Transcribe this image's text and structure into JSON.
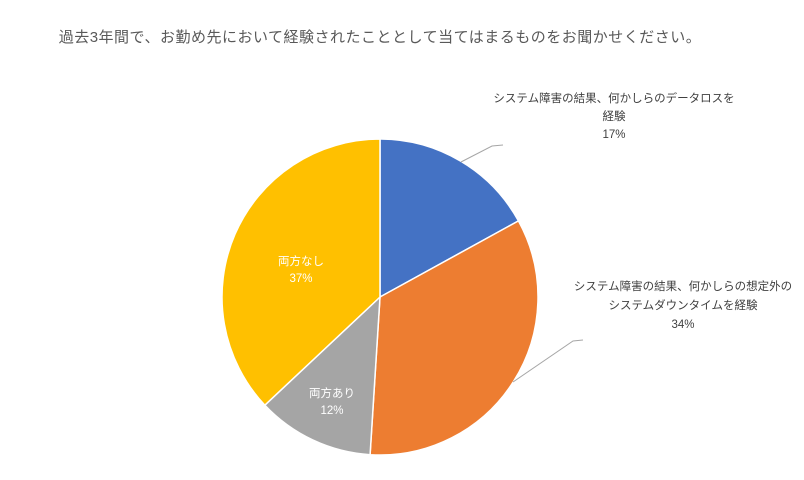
{
  "chart_data": {
    "type": "pie",
    "title": "過去3年間で、お勤め先において経験されたこととして当てはまるものをお聞かせください。",
    "start_angle": "top",
    "direction": "clockwise",
    "legend_position": "none",
    "title_color": "#595959",
    "outside_label_color": "#404040",
    "inside_label_color": "#ffffff",
    "leader_line_color": "#a6a6a6",
    "slices": [
      {
        "label": "システム障害の結果、何かしらのデータロスを経験",
        "value": 17,
        "percent_label": "17%",
        "color": "#4472C4",
        "label_placement": "outside"
      },
      {
        "label": "システム障害の結果、何かしらの想定外のシステムダウンタイムを経験",
        "value": 34,
        "percent_label": "34%",
        "color": "#ED7D31",
        "label_placement": "outside"
      },
      {
        "label": "両方あり",
        "value": 12,
        "percent_label": "12%",
        "color": "#A5A5A5",
        "label_placement": "inside"
      },
      {
        "label": "両方なし",
        "value": 37,
        "percent_label": "37%",
        "color": "#FFC000",
        "label_placement": "inside"
      }
    ]
  },
  "labels": {
    "data_loss": {
      "line1": "システム障害の結果、何かしらのデータロスを",
      "line2": "経験",
      "pct": "17%"
    },
    "downtime": {
      "line1": "システム障害の結果、何かしらの想定外の",
      "line2": "システムダウンタイムを経験",
      "pct": "34%"
    },
    "both": {
      "name": "両方あり",
      "pct": "12%"
    },
    "neither": {
      "name": "両方なし",
      "pct": "37%"
    }
  }
}
